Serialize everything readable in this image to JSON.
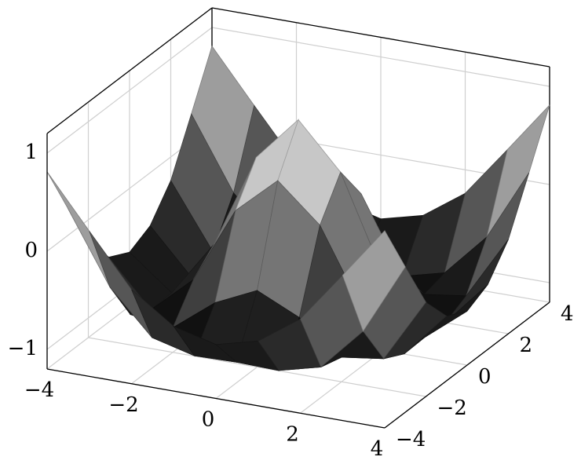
{
  "chart_data": {
    "type": "surface",
    "x": [
      -4,
      -3,
      -2,
      -1,
      0,
      1,
      2,
      3,
      4
    ],
    "y": [
      -4,
      -3,
      -2,
      -1,
      0,
      1,
      2,
      3,
      4
    ],
    "z": [
      [
        0.81,
        0.28,
        -0.24,
        -0.54,
        -0.65,
        -0.54,
        -0.24,
        0.28,
        0.81
      ],
      [
        0.28,
        -0.45,
        -0.89,
        -1.0,
        -0.99,
        -1.0,
        -0.89,
        -0.45,
        0.28
      ],
      [
        -0.24,
        -0.89,
        -0.95,
        -0.62,
        -0.42,
        -0.62,
        -0.95,
        -0.89,
        -0.24
      ],
      [
        -0.54,
        -1.0,
        -0.62,
        0.16,
        0.54,
        0.16,
        -0.62,
        -1.0,
        -0.54
      ],
      [
        -0.65,
        -0.99,
        -0.42,
        0.54,
        1.0,
        0.54,
        -0.42,
        -0.99,
        -0.65
      ],
      [
        -0.54,
        -1.0,
        -0.62,
        0.16,
        0.54,
        0.16,
        -0.62,
        -1.0,
        -0.54
      ],
      [
        -0.24,
        -0.89,
        -0.95,
        -0.62,
        -0.42,
        -0.62,
        -0.95,
        -0.89,
        -0.24
      ],
      [
        0.28,
        -0.45,
        -0.89,
        -1.0,
        -0.99,
        -1.0,
        -0.89,
        -0.45,
        0.28
      ],
      [
        0.81,
        0.28,
        -0.24,
        -0.54,
        -0.65,
        -0.54,
        -0.24,
        0.28,
        0.81
      ]
    ],
    "xlim": [
      -4,
      4
    ],
    "ylim": [
      -4,
      4
    ],
    "zlim": [
      -1.2,
      1.2
    ],
    "xticks": [
      {
        "value": -4,
        "label": "−4"
      },
      {
        "value": -2,
        "label": "−2"
      },
      0,
      2,
      4
    ],
    "yticks": [
      {
        "value": -4,
        "label": "−4"
      },
      {
        "value": -2,
        "label": "−2"
      },
      0,
      2,
      4
    ],
    "zticks": [
      {
        "value": -1,
        "label": "−1"
      },
      0,
      1
    ],
    "colormap": [
      "#000000",
      "#ffffff"
    ],
    "grid": true
  }
}
